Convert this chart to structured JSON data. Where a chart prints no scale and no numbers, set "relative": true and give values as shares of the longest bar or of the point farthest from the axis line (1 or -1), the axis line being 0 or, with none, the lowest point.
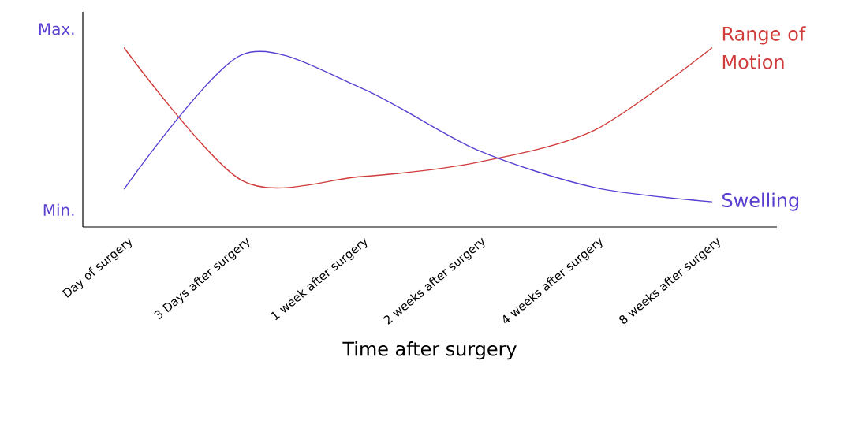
{
  "chart_data": {
    "type": "line",
    "xlabel": "Time after surgery",
    "relative": true,
    "categories": [
      "Day of surgery",
      "3 Days after surgery",
      "1 week after surgery",
      "2 weeks after surgery",
      "4 weeks after surgery",
      "8 weeks after surgery"
    ],
    "annotations": [
      "Max.",
      "Min."
    ],
    "marker": "none",
    "line_style": "solid",
    "legend": false,
    "series": [
      {
        "name": "Range of Motion",
        "color": "#d03b3b",
        "values": [
          1.0,
          0.26,
          0.28,
          0.36,
          0.54,
          1.0
        ]
      },
      {
        "name": "Swelling",
        "color": "#5b3fd1",
        "values": [
          0.21,
          0.96,
          0.78,
          0.43,
          0.22,
          0.14
        ]
      }
    ]
  }
}
